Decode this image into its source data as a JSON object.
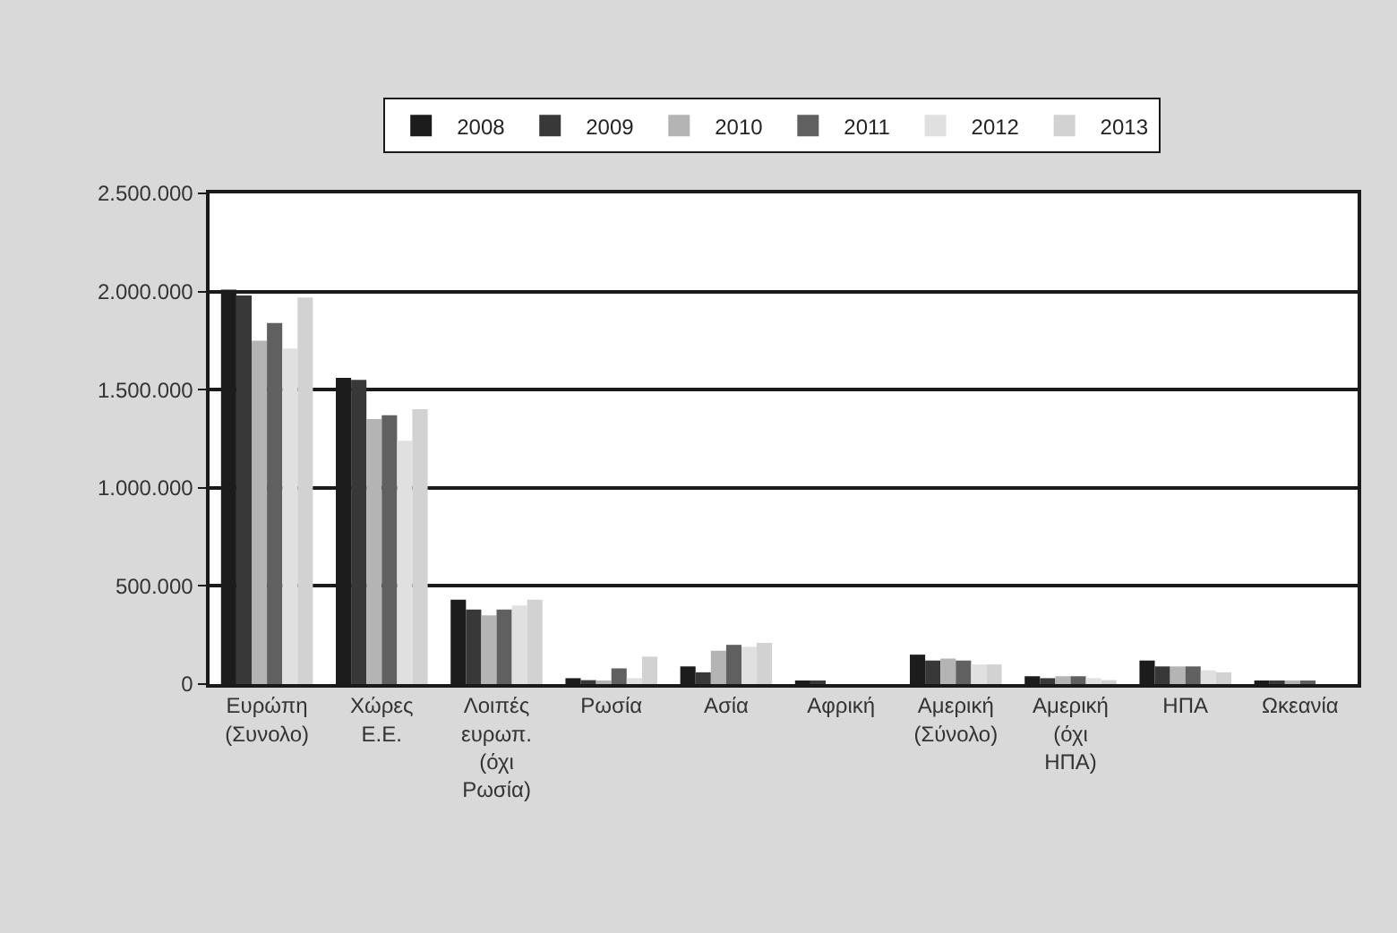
{
  "chart_data": {
    "type": "bar",
    "categories": [
      "Ευρώπη (Συνολο)",
      "Χώρες Ε.Ε.",
      "Λοιπές ευρωπ. (όχι Ρωσία)",
      "Ρωσία",
      "Ασία",
      "Αφρική",
      "Αμερική (Σύνολο)",
      "Αμερική (όχι ΗΠΑ)",
      "ΗΠΑ",
      "Ωκεανία"
    ],
    "series": [
      {
        "name": "2008",
        "color": "#1c1c1c",
        "values": [
          2010000,
          1560000,
          430000,
          30000,
          90000,
          10000,
          150000,
          40000,
          120000,
          10000
        ]
      },
      {
        "name": "2009",
        "color": "#383838",
        "values": [
          1980000,
          1550000,
          380000,
          20000,
          60000,
          10000,
          120000,
          30000,
          90000,
          10000
        ]
      },
      {
        "name": "2010",
        "color": "#b4b4b4",
        "values": [
          1750000,
          1350000,
          350000,
          10000,
          170000,
          0,
          130000,
          40000,
          90000,
          10000
        ]
      },
      {
        "name": "2011",
        "color": "#606060",
        "values": [
          1840000,
          1370000,
          380000,
          80000,
          200000,
          0,
          120000,
          40000,
          90000,
          10000
        ]
      },
      {
        "name": "2012",
        "color": "#e0e0e0",
        "values": [
          1710000,
          1240000,
          400000,
          30000,
          190000,
          0,
          100000,
          30000,
          70000,
          0
        ]
      },
      {
        "name": "2013",
        "color": "#d2d2d2",
        "values": [
          1970000,
          1400000,
          430000,
          140000,
          210000,
          0,
          100000,
          20000,
          60000,
          0
        ]
      }
    ],
    "ylim": [
      0,
      2500000
    ],
    "yticks": [
      0,
      {
        "value": 500000,
        "label": "500.000"
      },
      {
        "value": 1000000,
        "label": "1.000.000"
      },
      {
        "value": 1500000,
        "label": "1.500.000"
      },
      {
        "value": 2000000,
        "label": "2.000.000"
      },
      {
        "value": 2500000,
        "label": "2.500.000"
      }
    ],
    "grid": "y",
    "legend": "top"
  }
}
